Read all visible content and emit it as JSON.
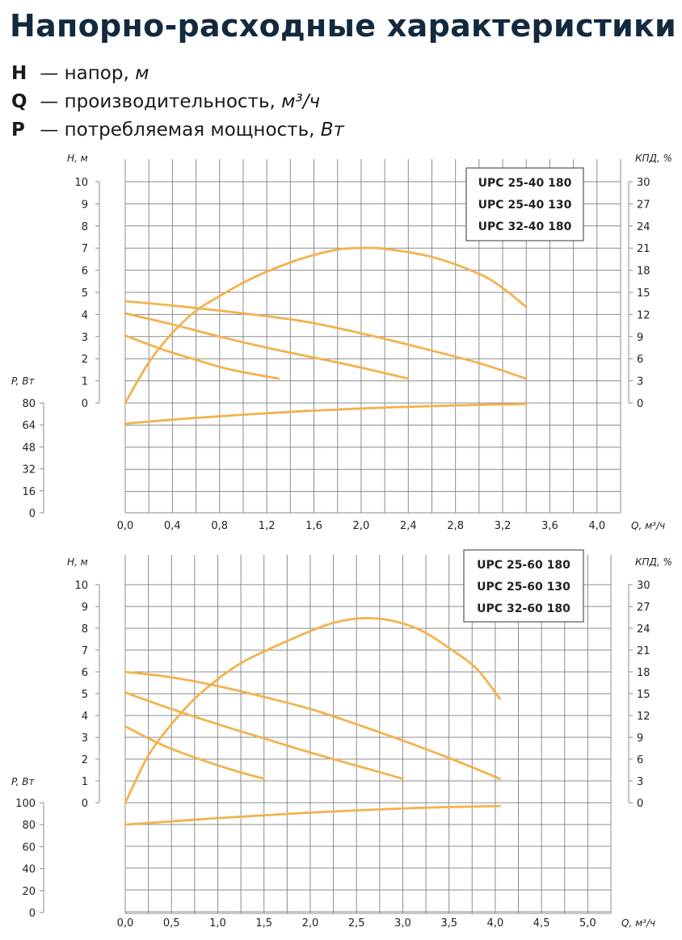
{
  "page": {
    "title": "Напорно-расходные характеристики",
    "legend": [
      {
        "symbol": "H",
        "text": " — напор, ",
        "unit": "м"
      },
      {
        "symbol": "Q",
        "text": " — производительность, ",
        "unit": "м³/ч"
      },
      {
        "symbol": "P",
        "text": " — потребляемая мощность, ",
        "unit": "Вт"
      }
    ]
  },
  "colors": {
    "curve": "#f2b24e",
    "grid": "#8c8c8c",
    "axis": "#8c8c8c",
    "box_border": "#555555"
  },
  "chart_data": [
    {
      "type": "line",
      "models": [
        "UPC 25-40 180",
        "UPC 25-40 130",
        "UPC 32-40 180"
      ],
      "xlabel": "Q, м³/ч",
      "ylabel_left": "H, м",
      "ylabel_right": "КПД, %",
      "ylabel_power": "P, Вт",
      "x_ticks": [
        0.0,
        0.4,
        0.8,
        1.2,
        1.6,
        2.0,
        2.4,
        2.8,
        3.2,
        3.6,
        4.0
      ],
      "x_tick_labels": [
        "0,0",
        "0,4",
        "0,8",
        "1,2",
        "1,6",
        "2,0",
        "2,4",
        "2,8",
        "3,2",
        "3,6",
        "4,0"
      ],
      "xlim": [
        0,
        4.0
      ],
      "h_ticks": [
        "0",
        "1",
        "2",
        "3",
        "4",
        "5",
        "6",
        "7",
        "8",
        "9",
        "10"
      ],
      "h_range": [
        0,
        10
      ],
      "eff_ticks": [
        "0",
        "3",
        "6",
        "9",
        "12",
        "15",
        "18",
        "21",
        "24",
        "27",
        "30"
      ],
      "eff_range": [
        0,
        30
      ],
      "p_ticks": [
        "0",
        "16",
        "32",
        "48",
        "64",
        "80"
      ],
      "p_range": [
        0,
        80
      ],
      "head_curves": [
        {
          "name": "UPC 25-40 180 H",
          "x": [
            0,
            0.5,
            1.0,
            1.5,
            2.0,
            2.5,
            3.0,
            3.4
          ],
          "y": [
            4.6,
            4.35,
            4.05,
            3.7,
            3.15,
            2.5,
            1.8,
            1.1
          ]
        },
        {
          "name": "UPC 25-40 130 H",
          "x": [
            0,
            0.4,
            0.8,
            1.2,
            1.6,
            2.0,
            2.4
          ],
          "y": [
            4.05,
            3.55,
            3.0,
            2.5,
            2.05,
            1.6,
            1.1
          ]
        },
        {
          "name": "UPC 32-40 180 H",
          "x": [
            0,
            0.3,
            0.6,
            0.9,
            1.3
          ],
          "y": [
            3.05,
            2.45,
            1.95,
            1.5,
            1.1
          ]
        }
      ],
      "efficiency_curve": {
        "name": "КПД",
        "x": [
          0,
          0.2,
          0.4,
          0.6,
          0.8,
          1.0,
          1.2,
          1.5,
          1.8,
          2.0,
          2.2,
          2.6,
          3.0,
          3.2,
          3.4
        ],
        "y": [
          0,
          5.5,
          9.5,
          12.5,
          14.5,
          16.3,
          17.8,
          19.6,
          20.8,
          21.0,
          20.9,
          19.8,
          17.5,
          15.6,
          13.0
        ]
      },
      "power_curve": {
        "name": "P",
        "x": [
          0,
          0.5,
          1.0,
          1.5,
          2.0,
          2.5,
          3.0,
          3.4
        ],
        "y": [
          65,
          68.5,
          71.5,
          74,
          76,
          77.5,
          78.6,
          79.2
        ]
      }
    },
    {
      "type": "line",
      "models": [
        "UPC 25-60 180",
        "UPC 25-60 130",
        "UPC 32-60 180"
      ],
      "xlabel": "Q, м³/ч",
      "ylabel_left": "H, м",
      "ylabel_right": "КПД, %",
      "ylabel_power": "P, Вт",
      "x_ticks": [
        0.0,
        0.5,
        1.0,
        1.5,
        2.0,
        2.5,
        3.0,
        3.5,
        4.0,
        4.5,
        5.0
      ],
      "x_tick_labels": [
        "0,0",
        "0,5",
        "1,0",
        "1,5",
        "2,0",
        "2,5",
        "3,0",
        "3,5",
        "4,0",
        "4,5",
        "5,0"
      ],
      "xlim": [
        0,
        5.0
      ],
      "h_ticks": [
        "0",
        "1",
        "2",
        "3",
        "4",
        "5",
        "6",
        "7",
        "8",
        "9",
        "10"
      ],
      "h_range": [
        0,
        10
      ],
      "eff_ticks": [
        "0",
        "3",
        "6",
        "9",
        "12",
        "15",
        "18",
        "21",
        "24",
        "27",
        "30"
      ],
      "eff_range": [
        0,
        30
      ],
      "p_ticks": [
        "0",
        "20",
        "40",
        "60",
        "80",
        "100"
      ],
      "p_range": [
        0,
        100
      ],
      "head_curves": [
        {
          "name": "UPC 25-60 180 H",
          "x": [
            0,
            0.5,
            1.0,
            1.5,
            2.0,
            2.5,
            3.0,
            3.5,
            4.05
          ],
          "y": [
            6.0,
            5.75,
            5.35,
            4.85,
            4.3,
            3.6,
            2.85,
            2.05,
            1.1
          ]
        },
        {
          "name": "UPC 25-60 130 H",
          "x": [
            0,
            0.5,
            1.0,
            1.5,
            2.0,
            2.5,
            3.0
          ],
          "y": [
            5.05,
            4.3,
            3.6,
            2.95,
            2.3,
            1.7,
            1.1
          ]
        },
        {
          "name": "UPC 32-60 180 H",
          "x": [
            0,
            0.4,
            0.8,
            1.2,
            1.5
          ],
          "y": [
            3.5,
            2.65,
            2.0,
            1.45,
            1.1
          ]
        }
      ],
      "efficiency_curve": {
        "name": "КПД",
        "x": [
          0,
          0.25,
          0.5,
          0.75,
          1.0,
          1.25,
          1.5,
          2.0,
          2.3,
          2.6,
          2.9,
          3.2,
          3.5,
          3.8,
          4.05
        ],
        "y": [
          0,
          6.5,
          10.8,
          14.3,
          17.0,
          19.2,
          20.8,
          23.6,
          24.9,
          25.4,
          25.0,
          23.7,
          21.3,
          18.4,
          14.3
        ]
      },
      "power_curve": {
        "name": "P",
        "x": [
          0,
          0.5,
          1.0,
          1.5,
          2.0,
          2.5,
          3.0,
          3.5,
          4.05
        ],
        "y": [
          80,
          83,
          86,
          88.5,
          91,
          93,
          94.8,
          96,
          97
        ]
      }
    }
  ]
}
